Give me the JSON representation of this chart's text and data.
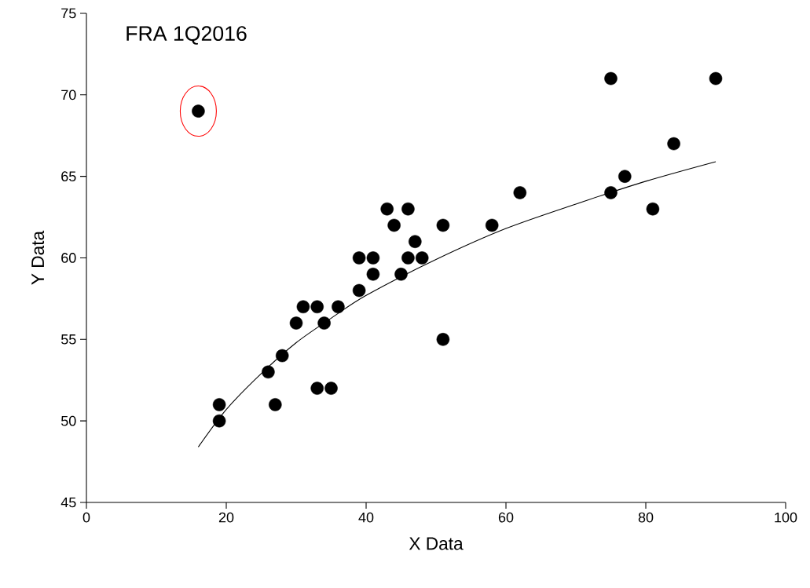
{
  "chart_data": {
    "type": "scatter",
    "xlabel": "X Data",
    "ylabel": "Y Data",
    "annotations": [
      "FRA 1Q2016"
    ],
    "xlim": [
      0,
      100
    ],
    "ylim": [
      45,
      75
    ],
    "xticks": [
      0,
      20,
      40,
      60,
      80,
      100
    ],
    "yticks": [
      45,
      50,
      55,
      60,
      65,
      70,
      75
    ],
    "grid": false,
    "series": [
      {
        "color": "#000000",
        "marker": "circle",
        "x": [
          16,
          19,
          19,
          26,
          27,
          28,
          30,
          31,
          33,
          33,
          34,
          35,
          36,
          39,
          39,
          41,
          41,
          43,
          44,
          45,
          46,
          46,
          47,
          48,
          51,
          51,
          58,
          62,
          75,
          75,
          77,
          81,
          84,
          90
        ],
        "values": [
          69,
          51,
          50,
          53,
          51,
          54,
          56,
          57,
          57,
          52,
          56,
          52,
          57,
          60,
          58,
          60,
          59,
          63,
          62,
          59,
          63,
          60,
          61,
          60,
          62,
          55,
          62,
          64,
          71,
          64,
          65,
          63,
          67,
          71
        ]
      },
      {
        "type": "line",
        "color": "#000000",
        "marker": "none",
        "x": [
          16,
          20,
          25,
          30,
          35,
          40,
          50,
          60,
          70,
          80,
          90
        ],
        "values": [
          48.4,
          50.7,
          52.9,
          54.8,
          56.3,
          57.7,
          59.9,
          61.8,
          63.3,
          64.7,
          65.9
        ]
      }
    ]
  }
}
